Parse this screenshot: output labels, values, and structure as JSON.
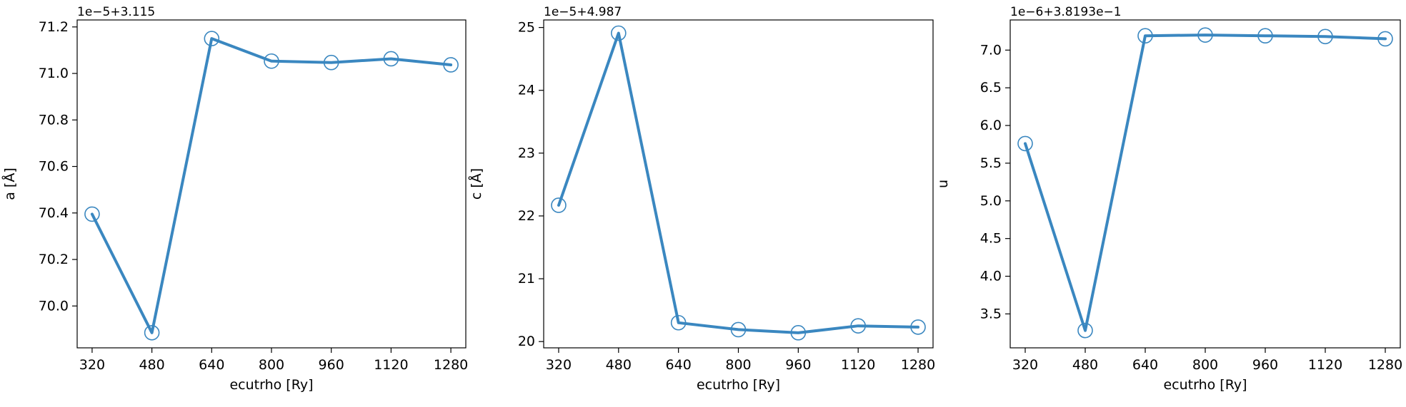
{
  "figure": {
    "accent": "#3a87c0"
  },
  "chart_data": [
    {
      "type": "line",
      "x": [
        320,
        480,
        640,
        800,
        960,
        1120,
        1280
      ],
      "xticks": [
        "320",
        "480",
        "640",
        "800",
        "960",
        "1120",
        "1280"
      ],
      "xlabel": "ecutrho [Ry]",
      "ylabel": "a [Å]",
      "offset_label": "1e−5+3.115",
      "yticks": [
        "70.0",
        "70.2",
        "70.4",
        "70.6",
        "70.8",
        "71.0",
        "71.2"
      ],
      "ytick_values": [
        70.0,
        70.2,
        70.4,
        70.6,
        70.8,
        71.0,
        71.2
      ],
      "ylim": [
        69.82,
        71.23
      ],
      "series": [
        {
          "values": [
            70.395,
            69.885,
            71.15,
            71.053,
            71.047,
            71.063,
            71.037
          ],
          "color": "#3a87c0",
          "marker": "open-circle"
        }
      ]
    },
    {
      "type": "line",
      "x": [
        320,
        480,
        640,
        800,
        960,
        1120,
        1280
      ],
      "xticks": [
        "320",
        "480",
        "640",
        "800",
        "960",
        "1120",
        "1280"
      ],
      "xlabel": "ecutrho [Ry]",
      "ylabel": "c [Å]",
      "offset_label": "1e−5+4.987",
      "yticks": [
        "20",
        "21",
        "22",
        "23",
        "24",
        "25"
      ],
      "ytick_values": [
        20,
        21,
        22,
        23,
        24,
        25
      ],
      "ylim": [
        19.9,
        25.12
      ],
      "series": [
        {
          "values": [
            22.17,
            24.91,
            20.3,
            20.19,
            20.14,
            20.25,
            20.23
          ],
          "color": "#3a87c0",
          "marker": "open-circle"
        }
      ]
    },
    {
      "type": "line",
      "x": [
        320,
        480,
        640,
        800,
        960,
        1120,
        1280
      ],
      "xticks": [
        "320",
        "480",
        "640",
        "800",
        "960",
        "1120",
        "1280"
      ],
      "xlabel": "ecutrho [Ry]",
      "ylabel": "u",
      "offset_label": "1e−6+3.8193e−1",
      "yticks": [
        "3.5",
        "4.0",
        "4.5",
        "5.0",
        "5.5",
        "6.0",
        "6.5",
        "7.0"
      ],
      "ytick_values": [
        3.5,
        4.0,
        4.5,
        5.0,
        5.5,
        6.0,
        6.5,
        7.0
      ],
      "ylim": [
        3.05,
        7.4
      ],
      "series": [
        {
          "values": [
            5.76,
            3.28,
            7.19,
            7.2,
            7.19,
            7.18,
            7.15
          ],
          "color": "#3a87c0",
          "marker": "open-circle"
        }
      ]
    }
  ]
}
